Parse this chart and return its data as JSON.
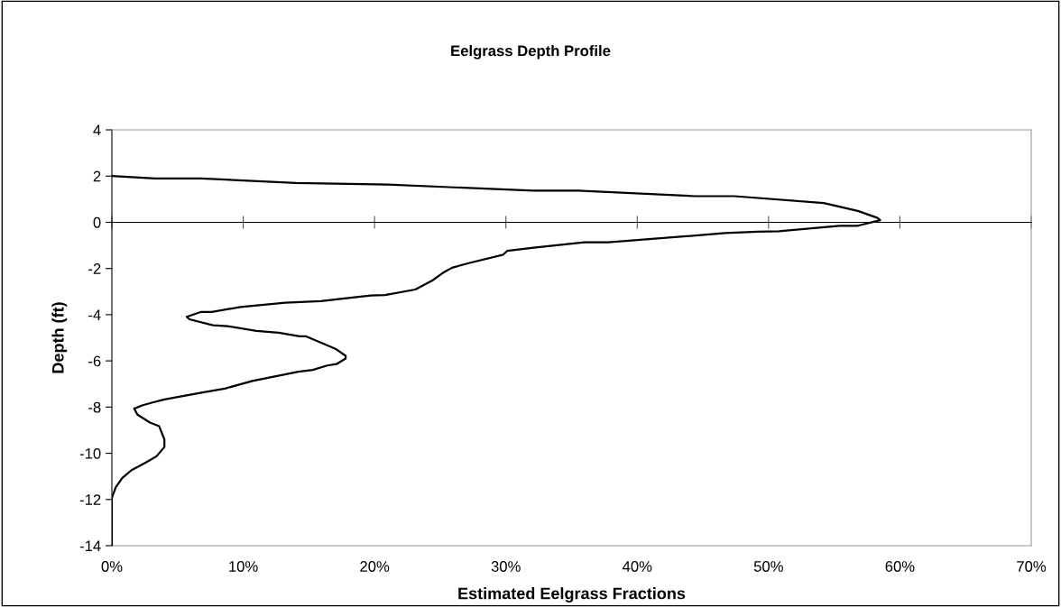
{
  "chart_data": {
    "type": "line",
    "title": "Eelgrass Depth Profile",
    "xlabel": "Estimated Eelgrass Fractions",
    "ylabel": "Depth (ft)",
    "series": [
      {
        "color": "#000000",
        "x": [
          0,
          3.3,
          6.8,
          14,
          21,
          32.1,
          35.5,
          44.4,
          47.4,
          54.2,
          56.8,
          58.3,
          58.5,
          56.8,
          55.4,
          50.8,
          49.2,
          46.7,
          37.8,
          36,
          32.1,
          30.1,
          29.8,
          27.1,
          25.9,
          25.2,
          24.4,
          23.1,
          20.8,
          19.7,
          15.9,
          13.2,
          9.8,
          7.6,
          6.8,
          5.7,
          5.9,
          7.7,
          8.8,
          11,
          12.7,
          14.3,
          14.8,
          17.1,
          17.8,
          17.8,
          17.1,
          16.4,
          15.3,
          14.2,
          10.7,
          8.6,
          7,
          4,
          3.1,
          2.3,
          1.7,
          1.95,
          2.9,
          3.6,
          4,
          4,
          3.4,
          2.5,
          1.5,
          0.8,
          0.3,
          0,
          0
        ],
        "values": [
          2.0,
          1.9,
          1.9,
          1.7,
          1.63,
          1.37,
          1.37,
          1.13,
          1.13,
          0.83,
          0.49,
          0.19,
          0.09,
          -0.15,
          -0.15,
          -0.39,
          -0.41,
          -0.47,
          -0.87,
          -0.87,
          -1.1,
          -1.24,
          -1.4,
          -1.78,
          -1.97,
          -2.19,
          -2.52,
          -2.91,
          -3.15,
          -3.17,
          -3.41,
          -3.48,
          -3.67,
          -3.88,
          -3.88,
          -4.09,
          -4.2,
          -4.46,
          -4.5,
          -4.7,
          -4.78,
          -4.94,
          -4.94,
          -5.5,
          -5.78,
          -5.9,
          -6.14,
          -6.2,
          -6.39,
          -6.47,
          -6.87,
          -7.2,
          -7.36,
          -7.67,
          -7.8,
          -7.93,
          -8.07,
          -8.33,
          -8.67,
          -8.83,
          -9.4,
          -9.73,
          -10.13,
          -10.43,
          -10.73,
          -11.07,
          -11.47,
          -11.93,
          -14
        ]
      }
    ],
    "xlim": [
      0,
      70
    ],
    "xticks": [
      {
        "value": 0,
        "label": "0%"
      },
      {
        "value": 10,
        "label": "10%"
      },
      {
        "value": 20,
        "label": "20%"
      },
      {
        "value": 30,
        "label": "30%"
      },
      {
        "value": 40,
        "label": "40%"
      },
      {
        "value": 50,
        "label": "50%"
      },
      {
        "value": 60,
        "label": "60%"
      },
      {
        "value": 70,
        "label": "70%"
      }
    ],
    "ylim": [
      -14,
      4
    ],
    "yticks": [
      -14,
      -12,
      -10,
      -8,
      -6,
      -4,
      -2,
      0,
      2,
      4
    ],
    "legend": false,
    "marker": "none",
    "line_style": "solid"
  }
}
